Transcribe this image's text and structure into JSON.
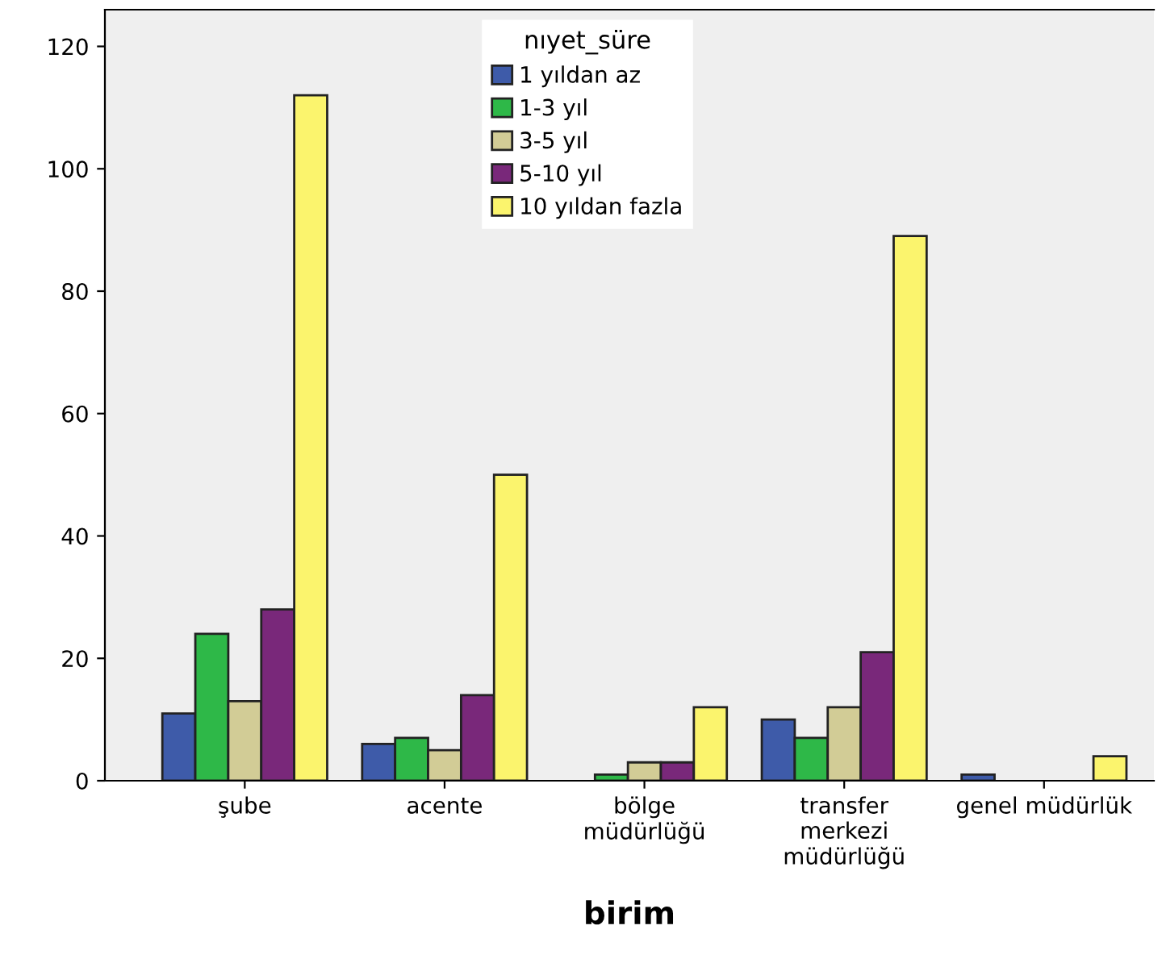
{
  "chart_data": {
    "type": "bar",
    "xlabel": "birim",
    "legend_title": "nıyet_süre",
    "categories": [
      "şube",
      "acente",
      "bölge\nmüdürlüğü",
      "transfer\nmerkezi\nmüdürlüğü",
      "genel müdürlük"
    ],
    "series": [
      {
        "name": "1 yıldan az",
        "color": "#3e5ba9",
        "values": [
          11,
          6,
          null,
          10,
          1
        ]
      },
      {
        "name": "1-3 yıl",
        "color": "#2eb848",
        "values": [
          24,
          7,
          1,
          7,
          null
        ]
      },
      {
        "name": "3-5 yıl",
        "color": "#d2cc96",
        "values": [
          13,
          5,
          3,
          12,
          null
        ]
      },
      {
        "name": "5-10 yıl",
        "color": "#79287a",
        "values": [
          28,
          14,
          3,
          21,
          null
        ]
      },
      {
        "name": "10 yıldan fazla",
        "color": "#fbf46d",
        "values": [
          112,
          50,
          12,
          89,
          4
        ]
      }
    ],
    "ylim": [
      0,
      126
    ],
    "yticks": [
      0,
      20,
      40,
      60,
      80,
      100,
      120
    ],
    "grid": false,
    "legend": "top"
  }
}
